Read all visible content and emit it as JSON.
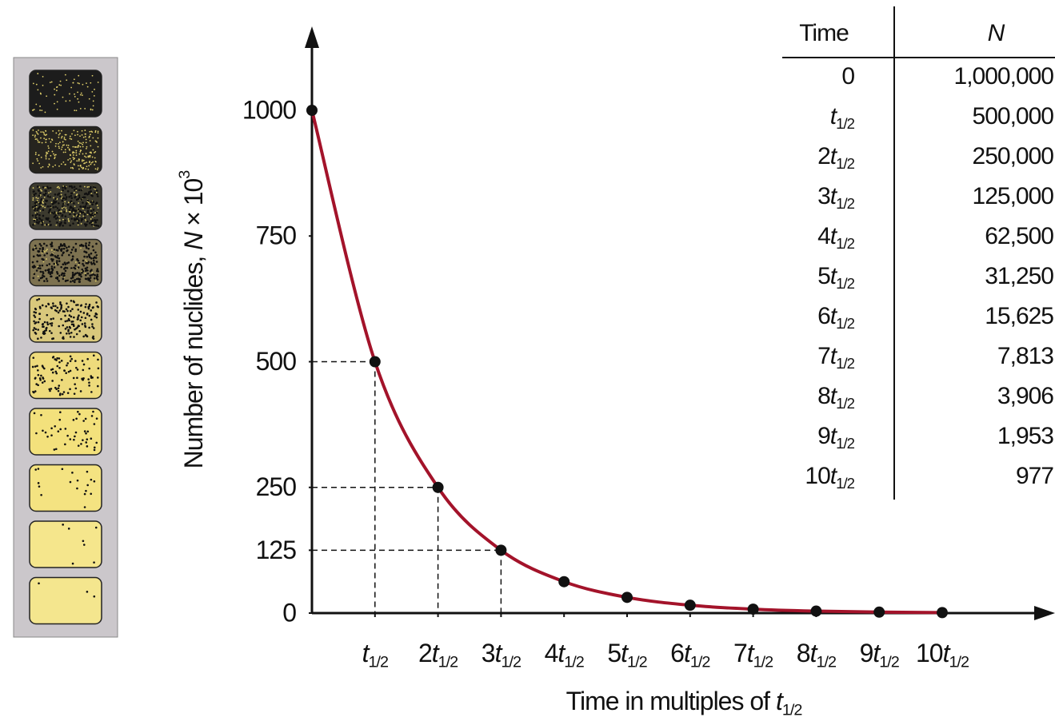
{
  "chart_data": {
    "type": "line",
    "y_label": {
      "text": "Number of nuclides, ",
      "symbol": "N",
      "rest": " × 10",
      "sup": "3"
    },
    "x_label": {
      "text": "Time in multiples of ",
      "symbol": "t",
      "sub": "1/2"
    },
    "x": [
      0,
      1,
      2,
      3,
      4,
      5,
      6,
      7,
      8,
      9,
      10
    ],
    "series": [
      {
        "name": "N",
        "color": "#a3132a",
        "values": [
          1000,
          500,
          250,
          125,
          62.5,
          31.25,
          15.625,
          7.813,
          3.906,
          1.953,
          0.977
        ]
      }
    ],
    "xlim": [
      0,
      11.6
    ],
    "ylim": [
      0,
      1150
    ],
    "yticks": [
      0,
      125,
      250,
      500,
      750,
      1000
    ],
    "xticks": [
      {
        "value": 1,
        "label": {
          "symbol": "t",
          "sub": "1/2"
        }
      },
      {
        "value": 2,
        "label": {
          "factor": "2",
          "symbol": "t",
          "sub": "1/2"
        }
      },
      {
        "value": 3,
        "label": {
          "factor": "3",
          "symbol": "t",
          "sub": "1/2"
        }
      },
      {
        "value": 4,
        "label": {
          "factor": "4",
          "symbol": "t",
          "sub": "1/2"
        }
      },
      {
        "value": 5,
        "label": {
          "factor": "5",
          "symbol": "t",
          "sub": "1/2"
        }
      },
      {
        "value": 6,
        "label": {
          "factor": "6",
          "symbol": "t",
          "sub": "1/2"
        }
      },
      {
        "value": 7,
        "label": {
          "factor": "7",
          "symbol": "t",
          "sub": "1/2"
        }
      },
      {
        "value": 8,
        "label": {
          "factor": "8",
          "symbol": "t",
          "sub": "1/2"
        }
      },
      {
        "value": 9,
        "label": {
          "factor": "9",
          "symbol": "t",
          "sub": "1/2"
        }
      },
      {
        "value": 10,
        "label": {
          "factor": "10",
          "symbol": "t",
          "sub": "1/2"
        }
      }
    ],
    "guides": [
      1,
      2,
      3
    ],
    "grid": false,
    "table": {
      "headers": [
        "Time",
        "N"
      ],
      "rows": [
        {
          "time": "0",
          "n": "1,000,000"
        },
        {
          "time": {
            "symbol": "t",
            "sub": "1/2"
          },
          "n": "500,000"
        },
        {
          "time": {
            "factor": "2",
            "symbol": "t",
            "sub": "1/2"
          },
          "n": "250,000"
        },
        {
          "time": {
            "factor": "3",
            "symbol": "t",
            "sub": "1/2"
          },
          "n": "125,000"
        },
        {
          "time": {
            "factor": "4",
            "symbol": "t",
            "sub": "1/2"
          },
          "n": "62,500"
        },
        {
          "time": {
            "factor": "5",
            "symbol": "t",
            "sub": "1/2"
          },
          "n": "31,250"
        },
        {
          "time": {
            "factor": "6",
            "symbol": "t",
            "sub": "1/2"
          },
          "n": "15,625"
        },
        {
          "time": {
            "factor": "7",
            "symbol": "t",
            "sub": "1/2"
          },
          "n": "7,813"
        },
        {
          "time": {
            "factor": "8",
            "symbol": "t",
            "sub": "1/2"
          },
          "n": "3,906"
        },
        {
          "time": {
            "factor": "9",
            "symbol": "t",
            "sub": "1/2"
          },
          "n": "1,953"
        },
        {
          "time": {
            "factor": "10",
            "symbol": "t",
            "sub": "1/2"
          },
          "n": "977"
        }
      ]
    }
  }
}
